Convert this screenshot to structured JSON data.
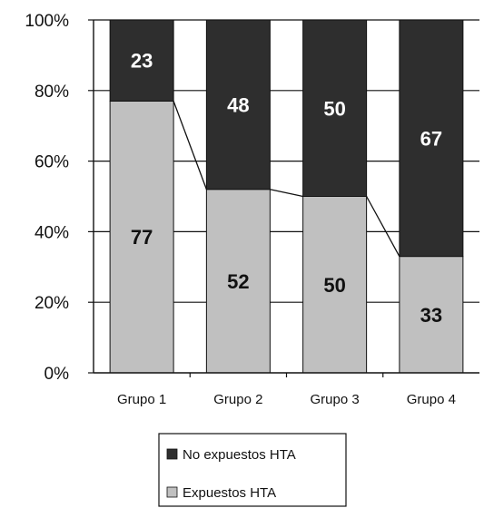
{
  "chart_data": {
    "type": "bar",
    "stacked": true,
    "percent": true,
    "categories": [
      "Grupo 1",
      "Grupo 2",
      "Grupo 3",
      "Grupo 4"
    ],
    "series": [
      {
        "name": "Expuestos HTA",
        "values": [
          77,
          52,
          50,
          33
        ],
        "color": "#c0c0c0",
        "label_color": "#111111"
      },
      {
        "name": "No expuestos HTA",
        "values": [
          23,
          48,
          50,
          67
        ],
        "color": "#2e2e2e",
        "label_color": "#ffffff"
      }
    ],
    "title": "",
    "xlabel": "",
    "ylabel": "",
    "ylim": [
      0,
      100
    ],
    "yticks": [
      0,
      20,
      40,
      60,
      80,
      100
    ],
    "ytick_labels": [
      "0%",
      "20%",
      "40%",
      "60%",
      "80%",
      "100%"
    ],
    "grid": true,
    "series_lines": true,
    "legend": {
      "placement": "bottom",
      "entries": [
        "No expuestos HTA",
        "Expuestos HTA"
      ]
    }
  }
}
